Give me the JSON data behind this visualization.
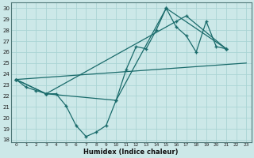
{
  "xlabel": "Humidex (Indice chaleur)",
  "bg_color": "#cce8e8",
  "grid_color": "#aad4d4",
  "line_color": "#1a6b6b",
  "xlim": [
    -0.5,
    23.5
  ],
  "ylim": [
    17.8,
    30.5
  ],
  "xticks": [
    0,
    1,
    2,
    3,
    4,
    5,
    6,
    7,
    8,
    9,
    10,
    11,
    12,
    13,
    14,
    15,
    16,
    17,
    18,
    19,
    20,
    21,
    22,
    23
  ],
  "yticks": [
    18,
    19,
    20,
    21,
    22,
    23,
    24,
    25,
    26,
    27,
    28,
    29,
    30
  ],
  "series": [
    {
      "x": [
        0,
        1,
        2,
        3,
        4,
        5,
        6,
        7,
        8,
        9,
        10,
        11,
        12,
        13,
        14,
        15,
        16,
        17,
        18,
        19,
        20,
        21
      ],
      "y": [
        23.5,
        22.8,
        22.5,
        22.2,
        22.2,
        21.1,
        19.3,
        18.3,
        18.7,
        19.3,
        21.6,
        24.4,
        26.5,
        26.3,
        28.0,
        30.0,
        28.3,
        27.5,
        26.0,
        28.8,
        26.5,
        26.3
      ]
    },
    {
      "comment": "line: 0->3->10->15 peak->21",
      "x": [
        0,
        3,
        10,
        15,
        21
      ],
      "y": [
        23.5,
        22.2,
        21.6,
        30.0,
        26.3
      ]
    },
    {
      "x": [
        0,
        23
      ],
      "y": [
        23.5,
        25.0
      ]
    },
    {
      "comment": "upper arc: 0->3->16->17->21",
      "x": [
        0,
        3,
        16,
        17,
        21
      ],
      "y": [
        23.5,
        22.2,
        28.8,
        29.3,
        26.3
      ]
    }
  ]
}
